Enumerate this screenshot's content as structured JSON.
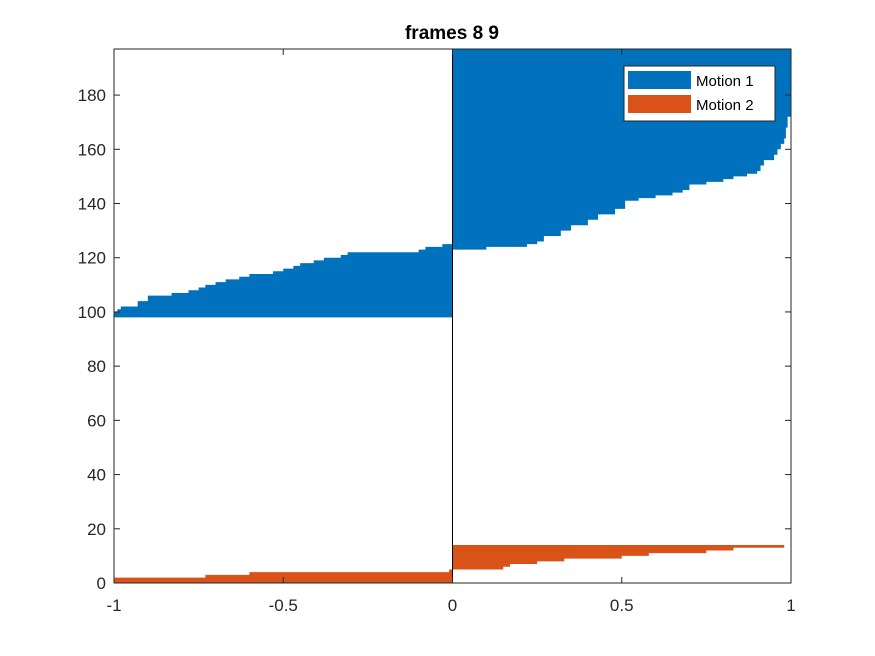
{
  "chart_data": {
    "type": "bar",
    "orientation": "horizontal",
    "title": "frames 8 9",
    "xlabel": "",
    "ylabel": "",
    "xlim": [
      -1,
      1
    ],
    "ylim": [
      0,
      197
    ],
    "xticks": [
      "-1",
      "-0.5",
      "0",
      "0.5",
      "1"
    ],
    "yticks": [
      "0",
      "20",
      "40",
      "60",
      "80",
      "100",
      "120",
      "140",
      "160",
      "180"
    ],
    "grid": false,
    "legend_position": "top-right",
    "series": [
      {
        "name": "Motion 1",
        "color": "#0072BD",
        "profiles": [
          {
            "side": "negative",
            "y_start": 98,
            "y_end": 125,
            "x": [
              -1.0,
              -0.99,
              -0.98,
              -0.93,
              -0.9,
              -0.83,
              -0.78,
              -0.75,
              -0.73,
              -0.7,
              -0.67,
              -0.63,
              -0.6,
              -0.53,
              -0.5,
              -0.47,
              -0.45,
              -0.41,
              -0.38,
              -0.33,
              -0.31,
              -0.18,
              -0.1,
              -0.08,
              -0.03,
              -0.01
            ],
            "y": [
              100,
              101,
              102,
              104,
              106,
              107,
              108,
              109,
              110,
              111,
              112,
              113,
              114,
              115,
              116,
              117,
              118,
              119,
              120,
              121,
              122,
              122,
              123,
              124,
              125,
              125
            ]
          },
          {
            "side": "positive",
            "y_start": 123,
            "y_end": 197,
            "x": [
              0.0,
              0.1,
              0.22,
              0.25,
              0.27,
              0.32,
              0.35,
              0.4,
              0.43,
              0.48,
              0.51,
              0.55,
              0.6,
              0.65,
              0.68,
              0.7,
              0.75,
              0.8,
              0.83,
              0.87,
              0.9,
              0.91,
              0.92,
              0.95,
              0.96,
              0.97,
              0.98,
              0.985,
              0.99,
              1.0
            ],
            "y": [
              123,
              124,
              125,
              126,
              128,
              130,
              132,
              134,
              136,
              138,
              141,
              142,
              143,
              144,
              145,
              147,
              148,
              149,
              150,
              151,
              152,
              154,
              156,
              158,
              160,
              162,
              164,
              168,
              172,
              197
            ]
          }
        ]
      },
      {
        "name": "Motion 2",
        "color": "#D95319",
        "profiles": [
          {
            "side": "negative",
            "y_start": 0,
            "y_end": 5,
            "x": [
              -1.0,
              -0.73,
              -0.6,
              -0.01
            ],
            "y": [
              2,
              3,
              4,
              5
            ]
          },
          {
            "side": "positive",
            "y_start": 3,
            "y_end": 14,
            "x": [
              0.0,
              0.15,
              0.17,
              0.25,
              0.33,
              0.5,
              0.58,
              0.67,
              0.75,
              0.83,
              0.92,
              0.98,
              1.0
            ],
            "y": [
              5,
              6,
              7,
              8,
              9,
              10,
              11,
              11,
              12,
              13,
              13,
              14,
              14
            ]
          }
        ]
      }
    ]
  }
}
